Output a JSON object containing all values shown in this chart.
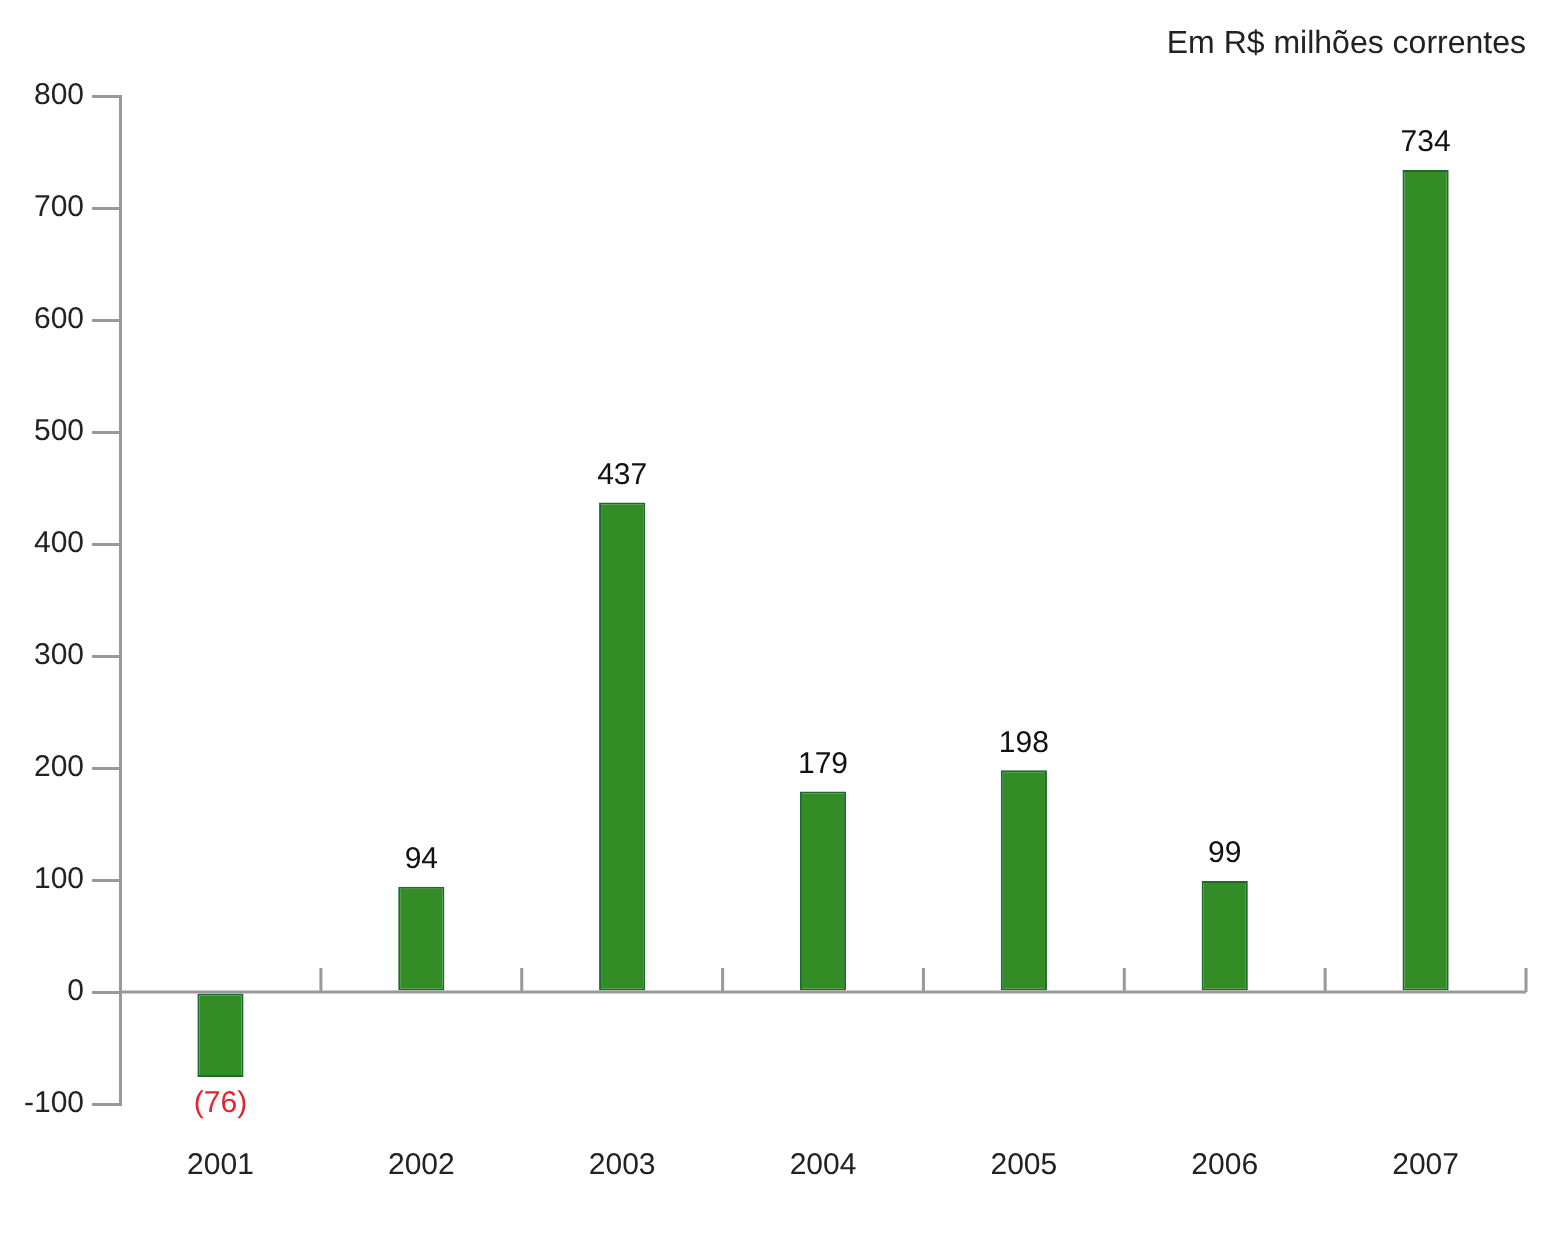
{
  "chart_data": {
    "type": "bar",
    "subtitle": "Em R$ milhões correntes",
    "categories": [
      "2001",
      "2002",
      "2003",
      "2004",
      "2005",
      "2006",
      "2007"
    ],
    "values": [
      -76,
      94,
      437,
      179,
      198,
      99,
      734
    ],
    "value_labels": [
      "(76)",
      "94",
      "437",
      "179",
      "198",
      "99",
      "734"
    ],
    "color": "#338c26",
    "ylim": [
      -100,
      800
    ],
    "yticks": [
      -100,
      0,
      100,
      200,
      300,
      400,
      500,
      600,
      700,
      800
    ],
    "legend": false
  }
}
